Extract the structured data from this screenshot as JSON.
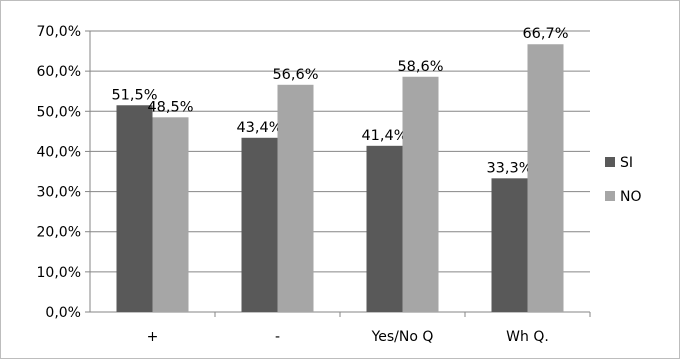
{
  "chart_data": {
    "type": "bar",
    "categories": [
      "+",
      "-",
      "Yes/No Q",
      "Wh Q."
    ],
    "series": [
      {
        "name": "SI",
        "values": [
          51.5,
          43.4,
          41.4,
          33.3
        ],
        "labels": [
          "51,5%",
          "43,4%",
          "41,4%",
          "33,3%"
        ],
        "color": "#595959"
      },
      {
        "name": "NO",
        "values": [
          48.5,
          56.6,
          58.6,
          66.7
        ],
        "labels": [
          "48,5%",
          "56,6%",
          "58,6%",
          "66,7%"
        ],
        "color": "#a6a6a6"
      }
    ],
    "yticks": [
      "0,0%",
      "10,0%",
      "20,0%",
      "30,0%",
      "40,0%",
      "50,0%",
      "60,0%",
      "70,0%"
    ],
    "ylim": [
      0,
      70
    ],
    "grid": true,
    "legend_position": "right",
    "title": "",
    "xlabel": "",
    "ylabel": ""
  }
}
